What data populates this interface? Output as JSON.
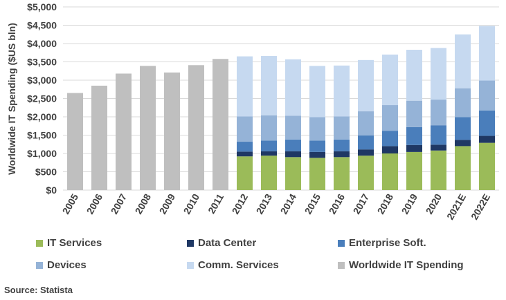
{
  "chart_data": {
    "type": "bar",
    "stacked": true,
    "xlabel": "",
    "ylabel": "Worldwide IT Spending ($US bln)",
    "ylim": [
      0,
      5000
    ],
    "yticks": [
      "$0",
      "$500",
      "$1,000",
      "$1,500",
      "$2,000",
      "$2,500",
      "$3,000",
      "$3,500",
      "$4,000",
      "$4,500",
      "$5,000"
    ],
    "grid": true,
    "legend_position": "bottom",
    "categories": [
      "2005",
      "2006",
      "2007",
      "2008",
      "2009",
      "2010",
      "2011",
      "2012",
      "2013",
      "2014",
      "2015",
      "2016",
      "2017",
      "2018",
      "2019",
      "2020",
      "2021E",
      "2022E"
    ],
    "series": [
      {
        "name": "IT Services",
        "color": "#9bbb59",
        "values": [
          null,
          null,
          null,
          null,
          null,
          null,
          null,
          920,
          940,
          900,
          880,
          900,
          940,
          1000,
          1040,
          1080,
          1200,
          1290
        ]
      },
      {
        "name": "Data Center",
        "color": "#1f3864",
        "values": [
          null,
          null,
          null,
          null,
          null,
          null,
          null,
          130,
          120,
          160,
          160,
          160,
          170,
          200,
          190,
          160,
          170,
          190
        ]
      },
      {
        "name": "Enterprise Soft.",
        "color": "#4a7ebb",
        "values": [
          null,
          null,
          null,
          null,
          null,
          null,
          null,
          270,
          290,
          320,
          310,
          320,
          380,
          420,
          490,
          530,
          620,
          690
        ]
      },
      {
        "name": "Devices",
        "color": "#95b3d7",
        "values": [
          null,
          null,
          null,
          null,
          null,
          null,
          null,
          690,
          690,
          650,
          640,
          630,
          660,
          700,
          720,
          700,
          790,
          820
        ]
      },
      {
        "name": "Comm. Services",
        "color": "#c6d9f0",
        "values": [
          null,
          null,
          null,
          null,
          null,
          null,
          null,
          1640,
          1620,
          1540,
          1400,
          1390,
          1400,
          1380,
          1390,
          1410,
          1470,
          1490
        ]
      },
      {
        "name": "Worldwide IT Spending",
        "color": "#bfbfbf",
        "values": [
          2650,
          2850,
          3180,
          3390,
          3210,
          3410,
          3580,
          null,
          null,
          null,
          null,
          null,
          null,
          null,
          null,
          null,
          null,
          null
        ]
      }
    ]
  },
  "source": "Source: Statista"
}
